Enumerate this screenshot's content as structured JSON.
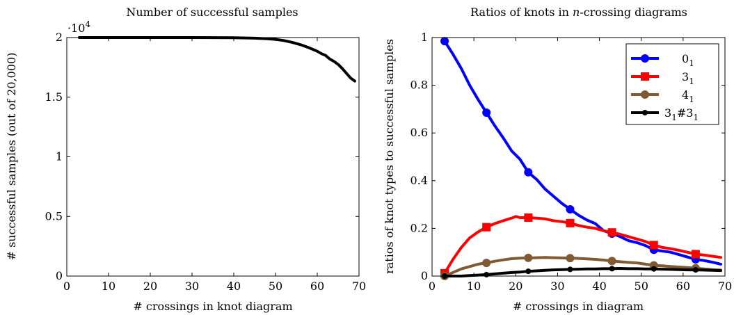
{
  "chart_data": [
    {
      "type": "line",
      "title": "Number of successful samples",
      "xlabel": "# crossings in knot diagram",
      "ylabel": "# successful samples (out of 20,000)",
      "y_multiplier": "·10",
      "y_multiplier_exp": "4",
      "xlim": [
        0,
        70
      ],
      "ylim": [
        0,
        2
      ],
      "xticks": [
        0,
        10,
        20,
        30,
        40,
        50,
        60,
        70
      ],
      "yticks": [
        0,
        0.5,
        1,
        1.5,
        2
      ],
      "ytick_labels": [
        "0",
        "0.5",
        "1",
        "1.5",
        "2"
      ],
      "grid": false,
      "series": [
        {
          "color": "#000000",
          "x": [
            3,
            10,
            20,
            30,
            40,
            45,
            48,
            50,
            52,
            54,
            56,
            58,
            60,
            61,
            62,
            63,
            64,
            65,
            66,
            67,
            68,
            69
          ],
          "y": [
            2.0,
            2.0,
            2.0,
            2.0,
            1.999,
            1.995,
            1.99,
            1.985,
            1.975,
            1.96,
            1.94,
            1.915,
            1.885,
            1.865,
            1.85,
            1.82,
            1.8,
            1.775,
            1.74,
            1.7,
            1.66,
            1.635
          ]
        }
      ]
    },
    {
      "type": "line",
      "title_prefix": "Ratios of knots in ",
      "title_var": "n",
      "title_suffix": "-crossing diagrams",
      "xlabel": "# crossings in diagram",
      "ylabel": "ratios of knot types to successful samples",
      "xlim": [
        0,
        70
      ],
      "ylim": [
        0,
        1
      ],
      "xticks": [
        0,
        10,
        20,
        30,
        40,
        50,
        60,
        70
      ],
      "yticks": [
        0,
        0.2,
        0.4,
        0.6,
        0.8,
        1
      ],
      "ytick_labels": [
        "0",
        "0.2",
        "0.4",
        "0.6",
        "0.8",
        "1"
      ],
      "grid": false,
      "legend_position": "top-right",
      "series": [
        {
          "name": "0",
          "name_sub": "1",
          "color": "#0000ff",
          "marker": "circle",
          "x": [
            3,
            5,
            7,
            9,
            11,
            13,
            15,
            17,
            19,
            21,
            23,
            25,
            27,
            29,
            31,
            33,
            35,
            37,
            39,
            41,
            43,
            45,
            47,
            49,
            51,
            53,
            55,
            57,
            59,
            61,
            63,
            65,
            67,
            69
          ],
          "y": [
            0.985,
            0.93,
            0.87,
            0.8,
            0.74,
            0.685,
            0.63,
            0.58,
            0.525,
            0.49,
            0.435,
            0.405,
            0.365,
            0.335,
            0.305,
            0.28,
            0.255,
            0.235,
            0.22,
            0.19,
            0.178,
            0.165,
            0.148,
            0.14,
            0.128,
            0.11,
            0.105,
            0.1,
            0.09,
            0.08,
            0.07,
            0.065,
            0.058,
            0.05
          ],
          "marker_x": [
            3,
            13,
            23,
            33,
            43,
            53,
            63
          ],
          "marker_y": [
            0.985,
            0.685,
            0.435,
            0.28,
            0.178,
            0.11,
            0.07
          ]
        },
        {
          "name": "3",
          "name_sub": "1",
          "color": "#ff0000",
          "marker": "square",
          "x": [
            3,
            5,
            7,
            9,
            11,
            13,
            15,
            17,
            19,
            20,
            21,
            23,
            25,
            27,
            29,
            31,
            33,
            35,
            37,
            39,
            41,
            43,
            45,
            47,
            49,
            51,
            53,
            55,
            57,
            59,
            61,
            63,
            65,
            67,
            69
          ],
          "y": [
            0.012,
            0.07,
            0.12,
            0.16,
            0.185,
            0.205,
            0.22,
            0.232,
            0.243,
            0.25,
            0.245,
            0.245,
            0.243,
            0.24,
            0.232,
            0.228,
            0.222,
            0.212,
            0.205,
            0.2,
            0.19,
            0.183,
            0.175,
            0.165,
            0.155,
            0.145,
            0.13,
            0.12,
            0.115,
            0.108,
            0.1,
            0.092,
            0.088,
            0.083,
            0.078
          ],
          "marker_x": [
            3,
            13,
            23,
            33,
            43,
            53,
            63
          ],
          "marker_y": [
            0.012,
            0.205,
            0.245,
            0.222,
            0.183,
            0.13,
            0.092
          ]
        },
        {
          "name": "4",
          "name_sub": "1",
          "color": "#7f5a32",
          "marker": "circle",
          "x": [
            3,
            5,
            7,
            9,
            11,
            13,
            15,
            17,
            19,
            21,
            23,
            25,
            27,
            29,
            31,
            33,
            35,
            37,
            39,
            41,
            43,
            45,
            47,
            49,
            51,
            53,
            55,
            57,
            59,
            61,
            63,
            65,
            67,
            69
          ],
          "y": [
            0.0,
            0.015,
            0.03,
            0.04,
            0.05,
            0.055,
            0.062,
            0.068,
            0.073,
            0.075,
            0.076,
            0.077,
            0.078,
            0.077,
            0.076,
            0.075,
            0.074,
            0.072,
            0.07,
            0.067,
            0.063,
            0.06,
            0.057,
            0.055,
            0.05,
            0.045,
            0.043,
            0.04,
            0.038,
            0.036,
            0.033,
            0.03,
            0.027,
            0.025
          ],
          "marker_x": [
            3,
            13,
            23,
            33,
            43,
            53,
            63
          ],
          "marker_y": [
            0.0,
            0.055,
            0.076,
            0.075,
            0.063,
            0.045,
            0.033
          ]
        },
        {
          "name": "3",
          "name_sub": "1",
          "name_op": "#",
          "name2": "3",
          "name2_sub": "1",
          "color": "#000000",
          "marker": "dot",
          "x": [
            3,
            5,
            7,
            9,
            11,
            13,
            15,
            17,
            19,
            21,
            23,
            25,
            27,
            29,
            31,
            33,
            35,
            37,
            39,
            41,
            43,
            45,
            47,
            49,
            51,
            53,
            55,
            57,
            59,
            61,
            63,
            65,
            67,
            69
          ],
          "y": [
            0.0,
            0.0,
            0.0,
            0.002,
            0.004,
            0.006,
            0.009,
            0.012,
            0.015,
            0.017,
            0.02,
            0.022,
            0.024,
            0.026,
            0.027,
            0.028,
            0.029,
            0.03,
            0.03,
            0.031,
            0.031,
            0.032,
            0.031,
            0.031,
            0.03,
            0.03,
            0.029,
            0.028,
            0.027,
            0.026,
            0.026,
            0.025,
            0.024,
            0.023
          ],
          "marker_x": [
            3,
            13,
            23,
            33,
            43,
            53,
            63
          ],
          "marker_y": [
            0.0,
            0.006,
            0.02,
            0.028,
            0.031,
            0.03,
            0.026
          ]
        }
      ]
    }
  ]
}
